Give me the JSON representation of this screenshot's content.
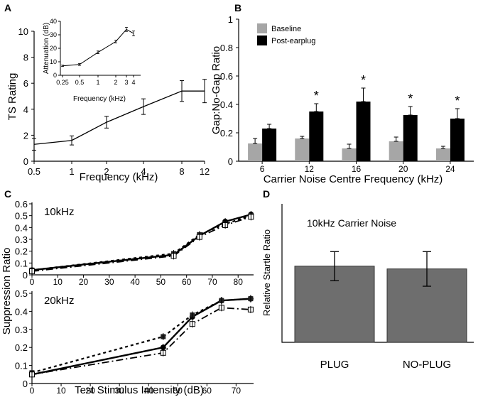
{
  "chart_data": [
    {
      "panel": "A",
      "type": "line",
      "ylabel": "TS Rating",
      "xlabel": "Frequency (kHz)",
      "x_ticks": [
        "0.5",
        "1",
        "2",
        "4",
        "8",
        "12"
      ],
      "y_ticks": [
        "0",
        "2",
        "4",
        "6",
        "8",
        "10"
      ],
      "ylim": [
        0,
        10
      ],
      "x": [
        0.5,
        1,
        2,
        4,
        8,
        12
      ],
      "values": [
        1.3,
        1.6,
        3.0,
        4.2,
        5.4,
        5.4
      ],
      "err": [
        0.45,
        0.35,
        0.45,
        0.6,
        0.8,
        0.9
      ],
      "inset": {
        "type": "line",
        "ylabel": "Attenuation (dB)",
        "xlabel": "Frequency (kHz)",
        "x_ticks": [
          "0.25",
          "0.5",
          "1",
          "2",
          "3",
          "4"
        ],
        "y_ticks": [
          "0",
          "10",
          "20",
          "30",
          "40"
        ],
        "ylim": [
          0,
          40
        ],
        "x": [
          0.25,
          0.5,
          1,
          2,
          3,
          4
        ],
        "values": [
          7,
          8,
          17,
          25,
          34,
          31
        ],
        "err": [
          0.5,
          0.7,
          1.0,
          1.0,
          1.5,
          1.8
        ]
      }
    },
    {
      "panel": "B",
      "type": "bar",
      "ylabel": "Gap:No-Gap Ratio",
      "xlabel": "Carrier Noise Centre Frequency (kHz)",
      "categories": [
        "6",
        "12",
        "16",
        "20",
        "24"
      ],
      "y_ticks": [
        "0",
        "0.2",
        "0.4",
        "0.6",
        "0.8",
        "1"
      ],
      "ylim": [
        0,
        1
      ],
      "legend": [
        "Baseline",
        "Post-earplug"
      ],
      "series": [
        {
          "name": "Baseline",
          "color": "#a6a6a6",
          "values": [
            0.125,
            0.16,
            0.09,
            0.14,
            0.09
          ],
          "err": [
            0.035,
            0.015,
            0.03,
            0.03,
            0.015
          ]
        },
        {
          "name": "Post-earplug",
          "color": "#000000",
          "values": [
            0.23,
            0.35,
            0.42,
            0.325,
            0.3
          ],
          "err": [
            0.03,
            0.055,
            0.095,
            0.06,
            0.07
          ]
        }
      ],
      "annotations": [
        "*",
        "*",
        "*",
        "*"
      ]
    },
    {
      "panel": "C",
      "type": "line",
      "ylabel": "Suppression Ratio",
      "xlabel": "Test Stimulus Intensity (dB)",
      "subplots": [
        {
          "title": "10kHz",
          "x_ticks": [
            "0",
            "10",
            "20",
            "30",
            "40",
            "50",
            "60",
            "70",
            "80"
          ],
          "y_ticks": [
            "0",
            "0.1",
            "0.2",
            "0.3",
            "0.4",
            "0.5",
            "0.6"
          ],
          "xlim": [
            0,
            86
          ],
          "ylim": [
            0,
            0.6
          ],
          "series": [
            {
              "name": "solid",
              "x": [
                0,
                55,
                65,
                75,
                85
              ],
              "values": [
                0.04,
                0.17,
                0.33,
                0.45,
                0.51
              ]
            },
            {
              "name": "dotted",
              "x": [
                0,
                55,
                65,
                75,
                85
              ],
              "values": [
                0.04,
                0.18,
                0.34,
                0.43,
                0.5
              ]
            },
            {
              "name": "dashdot",
              "x": [
                0,
                55,
                65,
                75,
                85
              ],
              "values": [
                0.03,
                0.16,
                0.32,
                0.42,
                0.49
              ]
            }
          ]
        },
        {
          "title": "20kHz",
          "x_ticks": [
            "0",
            "10",
            "20",
            "30",
            "40",
            "50",
            "60",
            "70"
          ],
          "y_ticks": [
            "0",
            "0.1",
            "0.2",
            "0.3",
            "0.4",
            "0.5"
          ],
          "xlim": [
            0,
            76
          ],
          "ylim": [
            0,
            0.5
          ],
          "series": [
            {
              "name": "solid",
              "x": [
                0,
                45,
                55,
                65,
                75
              ],
              "values": [
                0.05,
                0.2,
                0.37,
                0.46,
                0.47
              ]
            },
            {
              "name": "dotted",
              "x": [
                0,
                45,
                55,
                65,
                75
              ],
              "values": [
                0.06,
                0.26,
                0.38,
                0.46,
                0.47
              ]
            },
            {
              "name": "dashdot",
              "x": [
                0,
                45,
                55,
                65,
                75
              ],
              "values": [
                0.05,
                0.17,
                0.33,
                0.42,
                0.41
              ]
            }
          ]
        }
      ]
    },
    {
      "panel": "D",
      "type": "bar",
      "title": "10kHz Carrier Noise",
      "ylabel": "Relative Startle Ratio",
      "categories": [
        "PLUG",
        "NO-PLUG"
      ],
      "values": [
        0.55,
        0.53
      ],
      "err": [
        0.105,
        0.125
      ],
      "ylim": [
        0,
        1
      ],
      "color": "#6e6e6e"
    }
  ]
}
